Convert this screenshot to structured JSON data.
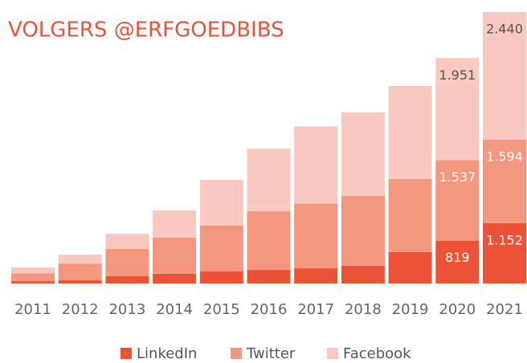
{
  "chart_data": {
    "type": "stacked_bar",
    "title": "VOLGERS @ERFGOEDBIBS",
    "categories": [
      "2011",
      "2012",
      "2013",
      "2014",
      "2015",
      "2016",
      "2017",
      "2018",
      "2019",
      "2020",
      "2021"
    ],
    "series": [
      {
        "name": "LinkedIn",
        "color": "#ec5236",
        "values": [
          45,
          60,
          140,
          185,
          230,
          260,
          290,
          340,
          600,
          819,
          1152
        ],
        "value_labels": [
          null,
          null,
          null,
          null,
          null,
          null,
          null,
          null,
          null,
          "819",
          "1.152"
        ]
      },
      {
        "name": "Twitter",
        "color": "#f4977f",
        "values": [
          150,
          320,
          520,
          690,
          875,
          1120,
          1240,
          1335,
          1395,
          1537,
          1594
        ],
        "value_labels": [
          null,
          null,
          null,
          null,
          null,
          null,
          null,
          null,
          null,
          "1.537",
          "1.594"
        ]
      },
      {
        "name": "Facebook",
        "color": "#f9c8bf",
        "values": [
          110,
          170,
          290,
          520,
          875,
          1195,
          1470,
          1595,
          1780,
          1951,
          2440
        ],
        "value_labels": [
          null,
          null,
          null,
          null,
          null,
          null,
          null,
          null,
          null,
          "1.951",
          "2.440"
        ]
      }
    ]
  }
}
